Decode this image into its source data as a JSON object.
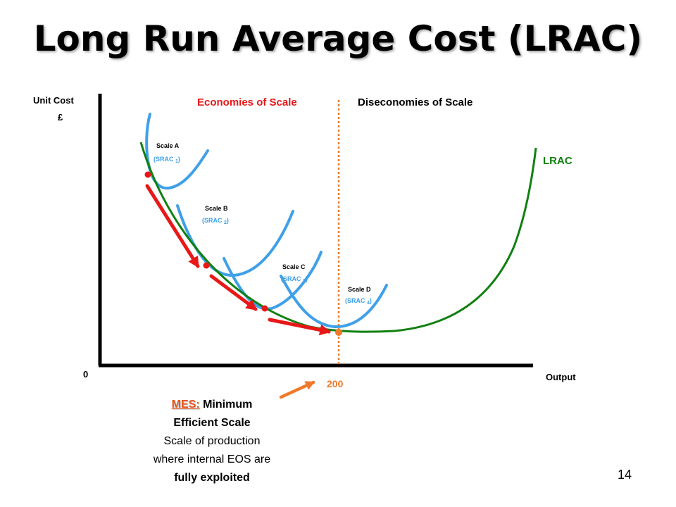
{
  "title": "Long Run Average Cost (LRAC)",
  "axes": {
    "y_label_line1": "Unit Cost",
    "y_label_line2": "£",
    "x_label": "Output",
    "origin_label": "0"
  },
  "regions": {
    "economies": "Economies of Scale",
    "diseconomies": "Diseconomies of Scale"
  },
  "curves": {
    "lrac_label": "LRAC",
    "srac": [
      {
        "scale": "Scale A",
        "label": "(SRAC ",
        "sub": "1",
        "close": ")"
      },
      {
        "scale": "Scale B",
        "label": "(SRAC ",
        "sub": "2",
        "close": ")"
      },
      {
        "scale": "Scale C",
        "label": "(SRAC ",
        "sub": "3",
        "close": ")"
      },
      {
        "scale": "Scale D",
        "label": "(SRAC ",
        "sub": "4",
        "close": ")"
      }
    ]
  },
  "mes_output": "200",
  "mes_note": {
    "abbr": "MES:",
    "line1_rest": " Minimum",
    "line2": "Efficient Scale",
    "line3": "Scale of production",
    "line4": "where internal EOS are",
    "line5": "fully exploited"
  },
  "page_number": "14",
  "colors": {
    "lrac": "#108010",
    "srac": "#3fa0e8",
    "arrows": "#e81818",
    "mes": "#f07a2a",
    "economies_text": "#e81818"
  }
}
